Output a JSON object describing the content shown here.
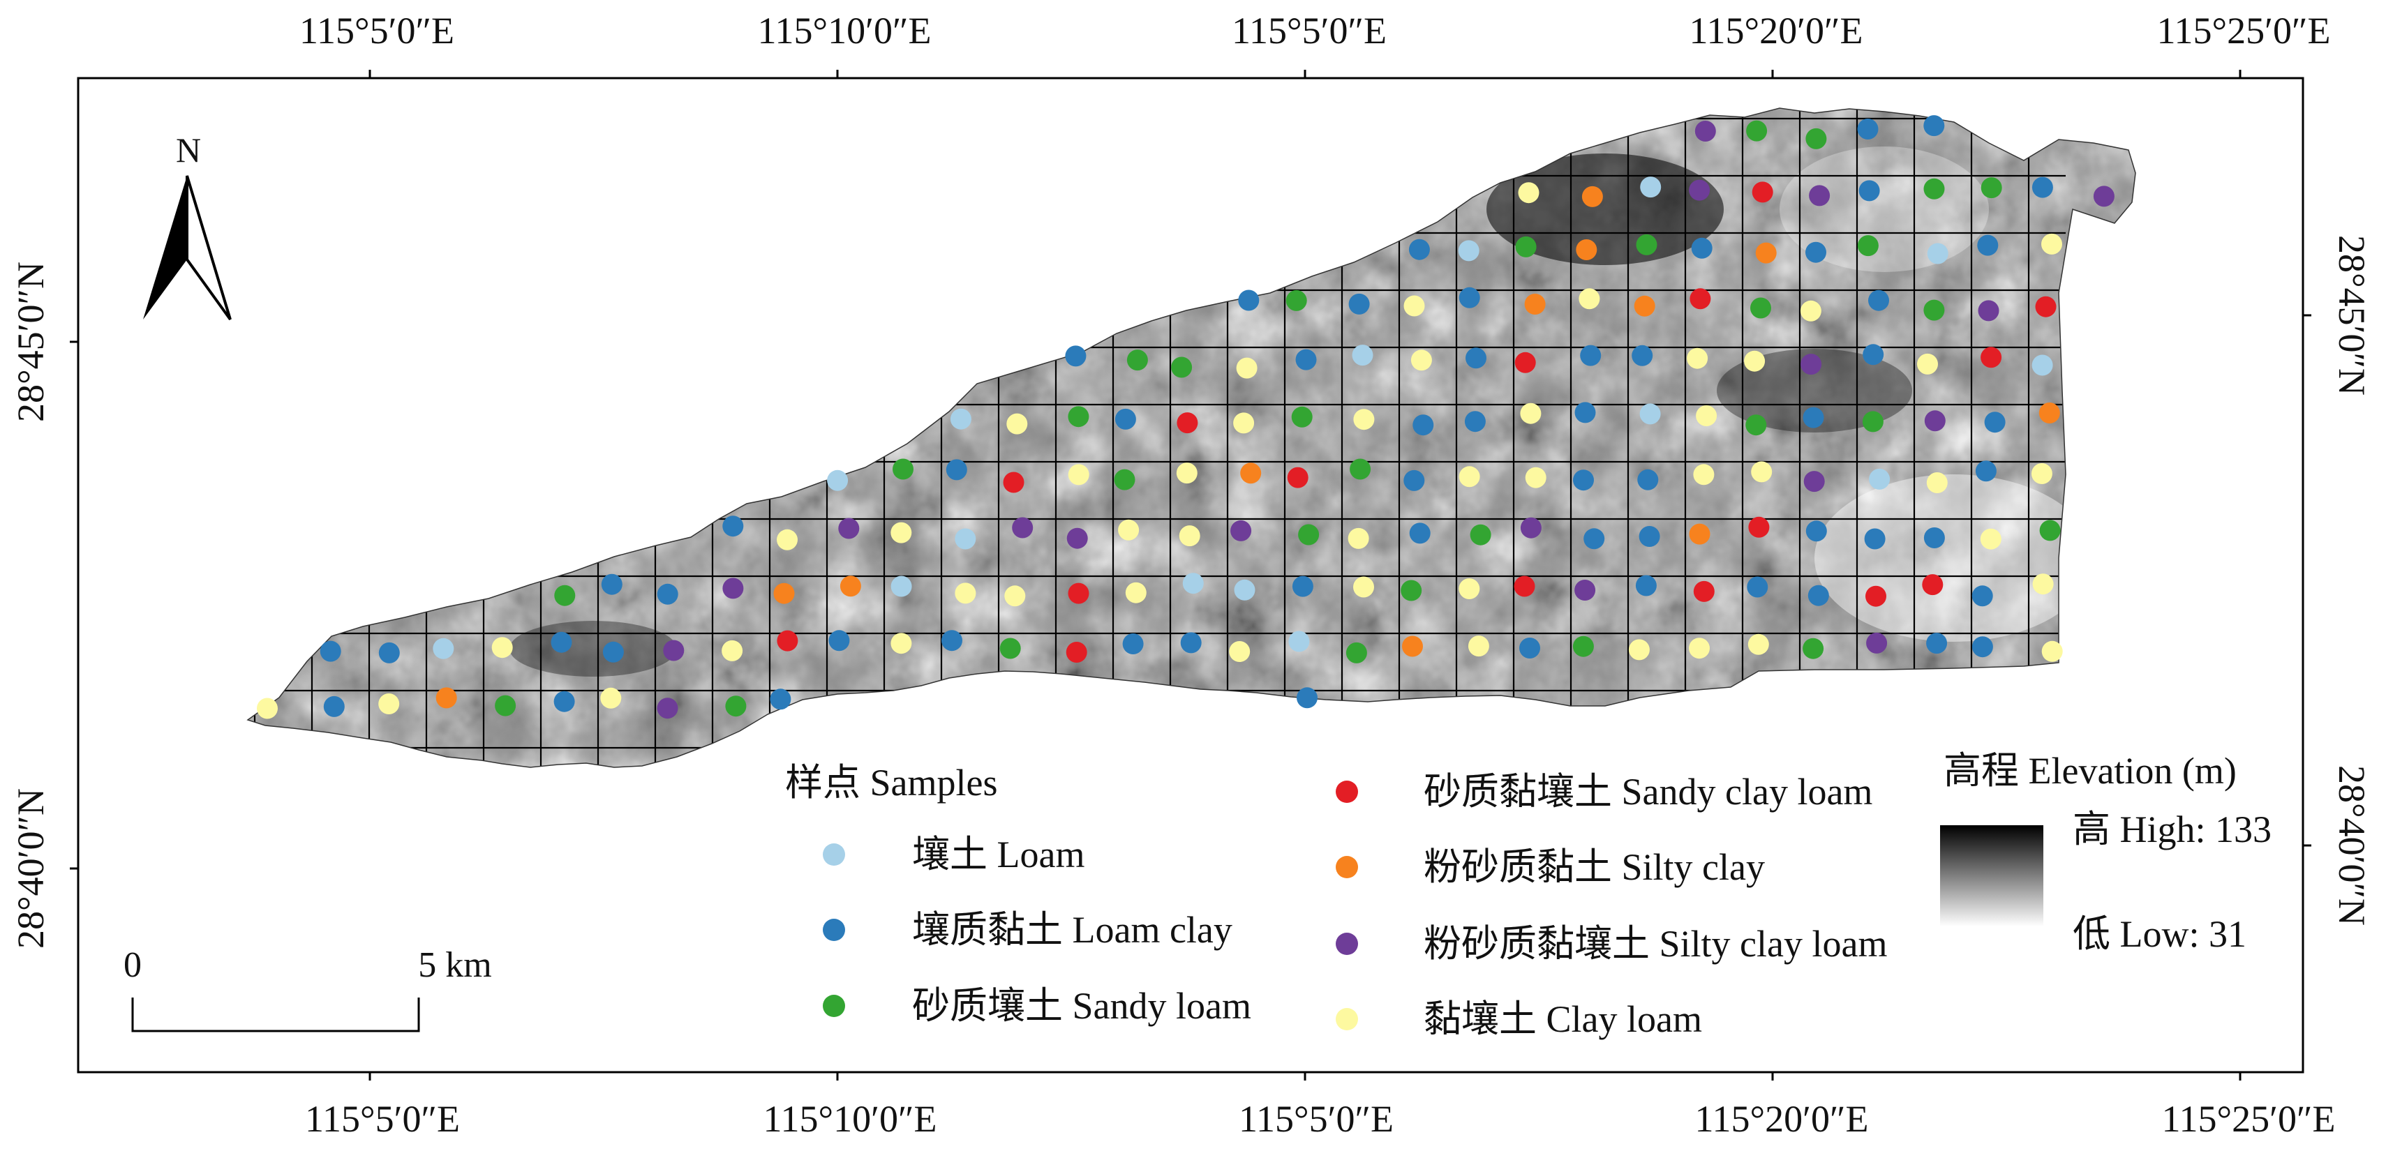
{
  "map": {
    "elevation_colormap": {
      "high": "#000000",
      "low": "#ffffff"
    },
    "grid_color": "#000000"
  },
  "graticule": {
    "top_ticks": [
      "115°5′0″E",
      "115°10′0″E",
      "115°5′0″E",
      "115°20′0″E",
      "115°25′0″E"
    ],
    "bottom_ticks": [
      "115°5′0″E",
      "115°10′0″E",
      "115°5′0″E",
      "115°20′0″E",
      "115°25′0″E"
    ],
    "left_ticks": [
      "28°45′0″N",
      "28°40′0″N"
    ],
    "right_ticks": [
      "28°45′0″N",
      "28°40′0″N"
    ]
  },
  "north_arrow": {
    "label": "N"
  },
  "scale_bar": {
    "start_label": "0",
    "end_label": "5 km"
  },
  "legend_samples": {
    "title": "样点 Samples",
    "items": [
      {
        "label": "壤土 Loam",
        "color": "#a6d0e8"
      },
      {
        "label": "壤质黏土 Loam clay",
        "color": "#2b7bba"
      },
      {
        "label": "砂质壤土 Sandy loam",
        "color": "#33a532"
      },
      {
        "label": "砂质黏壤土 Sandy clay loam",
        "color": "#e31e25"
      },
      {
        "label": "粉砂质黏土 Silty clay",
        "color": "#f7821e"
      },
      {
        "label": "粉砂质黏壤土 Silty clay loam",
        "color": "#6e3d98"
      },
      {
        "label": "黏壤土 Clay loam",
        "color": "#fdf9a0"
      }
    ]
  },
  "legend_elevation": {
    "title": "高程 Elevation (m)",
    "high_label": "高 High: 133",
    "low_label": "低 Low: 31"
  }
}
